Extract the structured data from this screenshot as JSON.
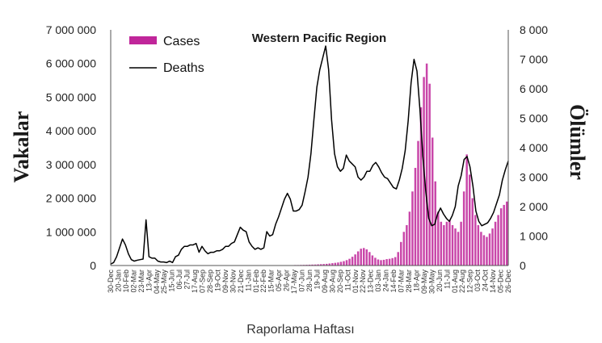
{
  "chart_data": {
    "type": "bar+line",
    "title": "Western Pacific Region",
    "xlabel": "Raporlama Haftası",
    "ylabel_left": "Vakalar",
    "ylabel_right": "Ölümler",
    "ylim_left": [
      0,
      7000000
    ],
    "ylim_right": [
      0,
      8000
    ],
    "yticks_left": [
      "0",
      "1 000 000",
      "2 000 000",
      "3 000 000",
      "4 000 000",
      "5 000 000",
      "6 000 000",
      "7 000 000"
    ],
    "yticks_right": [
      "0",
      "1 000",
      "2 000",
      "3 000",
      "4 000",
      "5 000",
      "6 000",
      "7 000",
      "8 000"
    ],
    "x_tick_labels": [
      "30-Dec",
      "20-Jan",
      "10-Feb",
      "02-Mar",
      "23-Mar",
      "13-Apr",
      "04-May",
      "25-May",
      "15-Jun",
      "06-Jul",
      "27-Jul",
      "17-Aug",
      "07-Sep",
      "28-Sep",
      "19-Oct",
      "09-Nov",
      "30-Nov",
      "21-Dec",
      "11-Jan",
      "01-Feb",
      "22-Feb",
      "15-Mar",
      "05-Apr",
      "26-Apr",
      "17-May",
      "07-Jun",
      "28-Jun",
      "19-Jul",
      "09-Aug",
      "30-Aug",
      "20-Sep",
      "11-Oct",
      "01-Nov",
      "22-Nov",
      "13-Dec",
      "03-Jan",
      "24-Jan",
      "14-Feb",
      "07-Mar",
      "28-Mar",
      "18-Apr",
      "09-May",
      "30-May",
      "20-Jun",
      "11-Jul",
      "01-Aug",
      "22-Aug",
      "12-Sep",
      "03-Oct",
      "24-Oct",
      "14-Nov",
      "05-Dec",
      "26-Dec"
    ],
    "series": [
      {
        "name": "Cases",
        "kind": "bar",
        "axis": "left",
        "color": "#c0269a",
        "values": [
          0,
          0,
          0,
          0,
          0,
          0,
          0,
          0,
          0,
          0,
          0,
          0,
          0,
          0,
          0,
          0,
          0,
          0,
          0,
          0,
          0,
          0,
          0,
          0,
          0,
          0,
          0,
          0,
          0,
          0,
          0,
          0,
          0,
          0,
          0,
          0,
          0,
          0,
          0,
          0,
          0,
          0,
          0,
          0,
          0,
          0,
          0,
          0,
          0,
          0,
          0,
          0,
          0,
          0,
          0,
          0,
          0,
          0,
          0,
          0,
          10000,
          10000,
          12000,
          12000,
          15000,
          15000,
          18000,
          20000,
          22000,
          25000,
          28000,
          30000,
          35000,
          40000,
          45000,
          50000,
          60000,
          70000,
          80000,
          90000,
          110000,
          130000,
          160000,
          200000,
          260000,
          330000,
          420000,
          500000,
          520000,
          480000,
          400000,
          300000,
          230000,
          180000,
          160000,
          170000,
          190000,
          200000,
          220000,
          250000,
          400000,
          700000,
          1000000,
          1200000,
          1600000,
          2200000,
          2900000,
          3700000,
          4700000,
          5600000,
          6000000,
          5400000,
          3800000,
          2500000,
          1600000,
          1300000,
          1200000,
          1300000,
          1350000,
          1200000,
          1100000,
          1000000,
          1300000,
          2200000,
          3300000,
          2700000,
          2000000,
          1500000,
          1200000,
          1000000,
          900000,
          850000,
          950000,
          1100000,
          1300000,
          1500000,
          1700000,
          1800000,
          1900000
        ]
      },
      {
        "name": "Deaths",
        "kind": "line",
        "axis": "right",
        "color": "#000000",
        "values": [
          50,
          100,
          300,
          600,
          900,
          700,
          400,
          200,
          150,
          180,
          200,
          220,
          1550,
          300,
          250,
          250,
          150,
          120,
          120,
          100,
          150,
          100,
          300,
          350,
          550,
          650,
          650,
          700,
          700,
          750,
          450,
          650,
          500,
          400,
          450,
          450,
          500,
          500,
          550,
          650,
          650,
          750,
          800,
          1050,
          1300,
          1200,
          1150,
          800,
          650,
          550,
          600,
          550,
          600,
          1150,
          1000,
          1050,
          1400,
          1650,
          1950,
          2250,
          2450,
          2250,
          1850,
          1850,
          1900,
          2050,
          2500,
          3000,
          3800,
          4950,
          6050,
          6650,
          7050,
          7450,
          6650,
          4950,
          3800,
          3350,
          3200,
          3300,
          3750,
          3550,
          3450,
          3350,
          3000,
          2900,
          3000,
          3200,
          3200,
          3400,
          3500,
          3350,
          3150,
          3000,
          2950,
          2800,
          2650,
          2600,
          2900,
          3300,
          3900,
          4900,
          6200,
          7000,
          6600,
          5300,
          3700,
          2500,
          1600,
          1350,
          1400,
          1750,
          1950,
          1750,
          1600,
          1500,
          1700,
          2000,
          2700,
          3050,
          3600,
          3700,
          3350,
          2700,
          1850,
          1500,
          1350,
          1400,
          1450,
          1600,
          1800,
          2100,
          2400,
          2900,
          3250,
          3550
        ]
      }
    ],
    "legend_position": "top-left",
    "grid": false
  }
}
